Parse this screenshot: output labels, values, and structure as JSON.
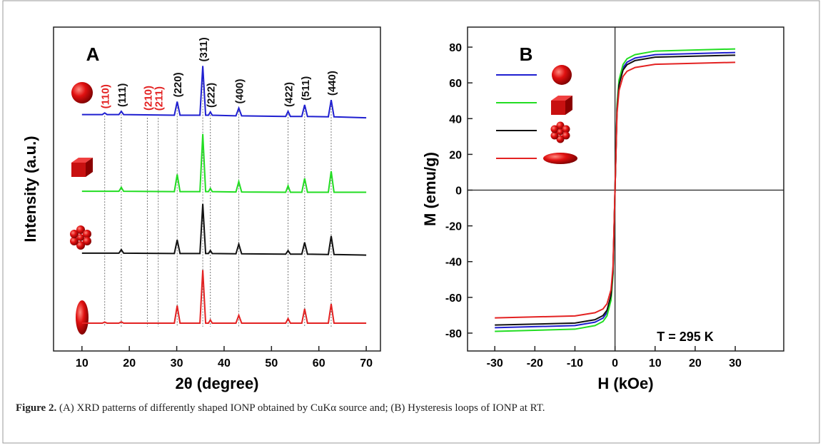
{
  "chart_data": [
    {
      "type": "line",
      "panel_label": "A",
      "xlabel": "2θ (degree)",
      "ylabel": "Intensity (a.u.)",
      "x": [
        10,
        14.3,
        14.8,
        15.3,
        17.8,
        18.3,
        18.8,
        29.5,
        30.1,
        30.7,
        34.9,
        35.5,
        36.1,
        36.7,
        37.1,
        37.5,
        42.5,
        43.1,
        43.7,
        53,
        53.5,
        54,
        56.4,
        57,
        57.6,
        62,
        62.6,
        63.2,
        70
      ],
      "series": [
        {
          "color": "#1f1fd0",
          "values": [
            73,
            73,
            73.5,
            73,
            73,
            74,
            73,
            72.8,
            77,
            72.8,
            72.8,
            88,
            72.8,
            72.8,
            73.8,
            72.8,
            72.6,
            75,
            72.6,
            72.4,
            74,
            72.4,
            72.4,
            76,
            72.4,
            72.3,
            77.5,
            72.3,
            72
          ]
        },
        {
          "color": "#22dd22",
          "values": [
            49.3,
            49.3,
            49.3,
            49.3,
            49.3,
            50.5,
            49.3,
            49.2,
            54.5,
            49.2,
            49.2,
            67,
            49.2,
            49.2,
            50.2,
            49.2,
            49.1,
            52.3,
            49.1,
            49,
            51,
            49,
            49,
            53.3,
            49,
            49,
            55.5,
            49,
            49
          ]
        },
        {
          "color": "#111111",
          "values": [
            30.2,
            30.2,
            30.2,
            30.2,
            30.2,
            31.3,
            30.2,
            30.1,
            34.3,
            30.1,
            30.1,
            45.4,
            30.1,
            30.1,
            31,
            30.1,
            30,
            33,
            30,
            29.9,
            31,
            29.9,
            29.9,
            33.5,
            29.9,
            29.8,
            35.5,
            29.8,
            29.6
          ]
        },
        {
          "color": "#e32222",
          "values": [
            8.6,
            8.6,
            8.9,
            8.6,
            8.6,
            9,
            8.6,
            8.6,
            14,
            8.6,
            8.6,
            25,
            8.6,
            8.6,
            9.6,
            8.6,
            8.6,
            11,
            8.6,
            8.6,
            10,
            8.6,
            8.6,
            13,
            8.6,
            8.6,
            14.5,
            8.6,
            8.6
          ]
        }
      ],
      "xlim": [
        4,
        73
      ],
      "ylim": [
        0,
        100
      ],
      "xticks": [
        10,
        20,
        30,
        40,
        50,
        60,
        70
      ],
      "annotations": [
        {
          "text": "(110)",
          "x": 14.8,
          "color": "#e32222"
        },
        {
          "text": "(111)",
          "x": 18.3,
          "color": "#111111"
        },
        {
          "text": "(210)",
          "x": 23.8,
          "color": "#e32222"
        },
        {
          "text": "(211)",
          "x": 26.1,
          "color": "#e32222"
        },
        {
          "text": "(220)",
          "x": 30.1,
          "color": "#111111"
        },
        {
          "text": "(311)",
          "x": 35.5,
          "color": "#111111"
        },
        {
          "text": "(222)",
          "x": 37.1,
          "color": "#111111"
        },
        {
          "text": "(400)",
          "x": 43.1,
          "color": "#111111"
        },
        {
          "text": "(422)",
          "x": 53.5,
          "color": "#111111"
        },
        {
          "text": "(511)",
          "x": 57,
          "color": "#111111"
        },
        {
          "text": "(440)",
          "x": 62.6,
          "color": "#111111"
        }
      ]
    },
    {
      "type": "line",
      "panel_label": "B",
      "xlabel": "H (kOe)",
      "ylabel": "M (emu/g)",
      "annotation": "T = 295 K",
      "x": [
        -30,
        -10,
        -5,
        -3,
        -2,
        -1,
        -0.5,
        0,
        0.5,
        1,
        2,
        3,
        5,
        10,
        30
      ],
      "series": [
        {
          "color": "#1f1fd0",
          "values": [
            -77,
            -75.8,
            -73.9,
            -71.6,
            -68.5,
            -60.1,
            -46.2,
            0,
            46.2,
            60.1,
            68.5,
            71.6,
            73.9,
            75.8,
            77
          ]
        },
        {
          "color": "#22dd22",
          "values": [
            -79,
            -77.8,
            -75.8,
            -73.5,
            -70.3,
            -61.6,
            -47.4,
            0,
            47.4,
            61.6,
            70.3,
            73.5,
            75.8,
            77.8,
            79
          ]
        },
        {
          "color": "#111111",
          "values": [
            -75.5,
            -74.4,
            -72.5,
            -70.2,
            -67.2,
            -58.9,
            -45.3,
            0,
            45.3,
            58.9,
            67.2,
            70.2,
            72.5,
            74.4,
            75.5
          ]
        },
        {
          "color": "#e32222",
          "values": [
            -71.5,
            -70.4,
            -68.6,
            -66.5,
            -63.6,
            -55.8,
            -42.9,
            0,
            42.9,
            55.8,
            63.6,
            66.5,
            68.6,
            70.4,
            71.5
          ]
        }
      ],
      "xlim": [
        -36.8,
        42.1
      ],
      "ylim": [
        -90,
        91.2
      ],
      "xticks": [
        -30,
        -20,
        -10,
        0,
        10,
        20,
        30
      ],
      "yticks": [
        -80,
        -60,
        -40,
        -20,
        0,
        20,
        40,
        60,
        80
      ]
    }
  ],
  "caption": {
    "label": "Figure 2.",
    "text": "(A) XRD patterns of differently shaped IONP obtained by CuKα source and; (B) Hysteresis loops of IONP at RT."
  }
}
